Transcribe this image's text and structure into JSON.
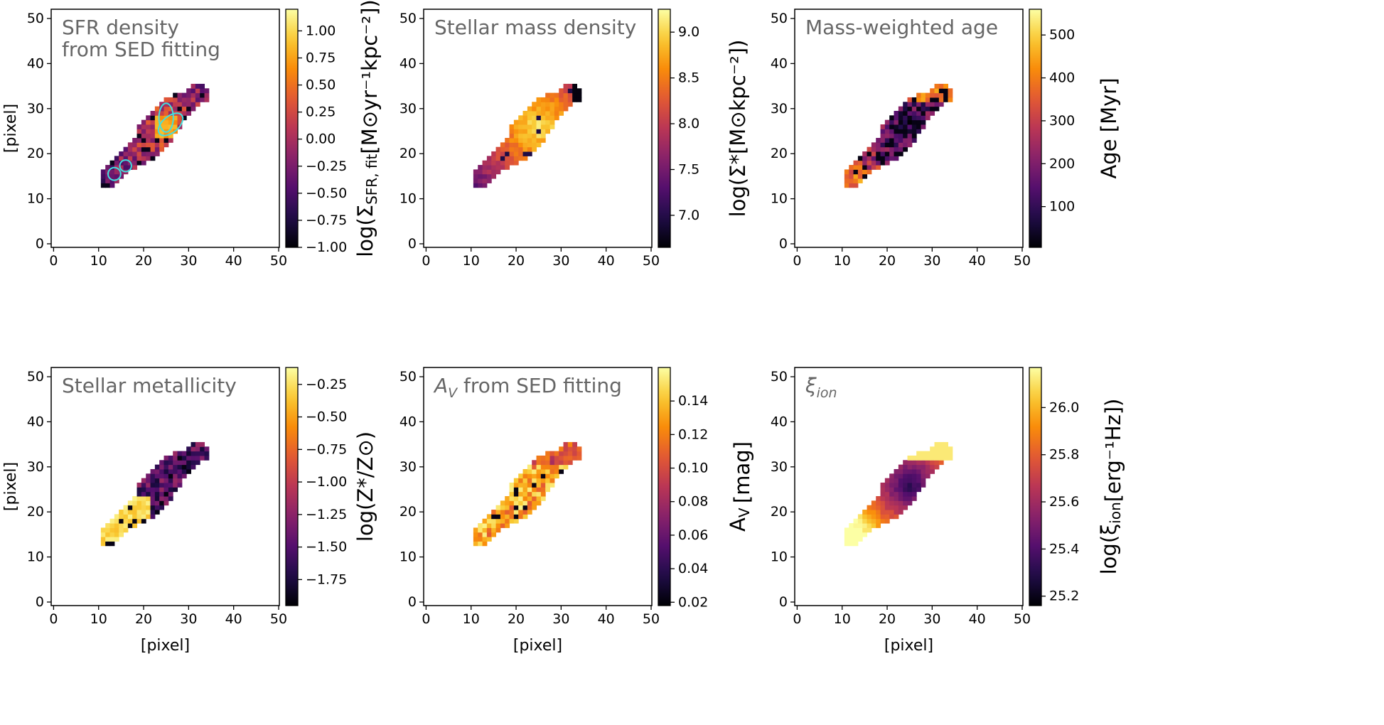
{
  "figure": {
    "panel_count": 6,
    "layout": "2 rows x 3 columns"
  },
  "chart_data": [
    {
      "id": "sfr",
      "type": "heatmap",
      "title_lines": [
        "SFR density",
        "from SED fitting"
      ],
      "xlabel": "",
      "ylabel": "[pixel]",
      "xlim": [
        0,
        50
      ],
      "ylim": [
        0,
        50
      ],
      "xticks": [
        "0",
        "10",
        "20",
        "30",
        "40",
        "50"
      ],
      "yticks": [
        "0",
        "10",
        "20",
        "30",
        "40",
        "50"
      ],
      "colormap": "inferno",
      "cbar": {
        "label": "log(Σ_SFR, fit[M⊙yr⁻¹kpc⁻²])",
        "vmin": -1.0,
        "vmax": 1.2,
        "ticks": [
          "−1.00",
          "−0.75",
          "−0.50",
          "−0.25",
          "0.00",
          "0.25",
          "0.50",
          "0.75",
          "1.00"
        ],
        "tick_values": [
          -1.0,
          -0.75,
          -0.5,
          -0.25,
          0.0,
          0.25,
          0.5,
          0.75,
          1.0
        ]
      },
      "pattern": "sfr",
      "contours": [
        {
          "type": "ellipse",
          "cx": 26,
          "cy": 26.5,
          "rx": 3.2,
          "ry": 1.8,
          "angle": 40
        },
        {
          "type": "ellipse",
          "cx": 25,
          "cy": 28,
          "rx": 1.6,
          "ry": 3.2,
          "angle": 0
        },
        {
          "type": "ellipse",
          "cx": 16,
          "cy": 17.3,
          "rx": 1.3,
          "ry": 1.3,
          "angle": 0
        },
        {
          "type": "ellipse",
          "cx": 13.5,
          "cy": 15.5,
          "rx": 1.4,
          "ry": 1.4,
          "angle": 0
        }
      ],
      "contour_color": "#40e0e0"
    },
    {
      "id": "mass",
      "type": "heatmap",
      "title_lines": [
        "Stellar mass density"
      ],
      "xlabel": "",
      "ylabel": "",
      "xlim": [
        0,
        50
      ],
      "ylim": [
        0,
        50
      ],
      "xticks": [
        "0",
        "10",
        "20",
        "30",
        "40",
        "50"
      ],
      "yticks": [
        "0",
        "10",
        "20",
        "30",
        "40",
        "50"
      ],
      "colormap": "inferno",
      "cbar": {
        "label": "log(Σ*[M⊙kpc⁻²])",
        "vmin": 6.65,
        "vmax": 9.25,
        "ticks": [
          "7.0",
          "7.5",
          "8.0",
          "8.5",
          "9.0"
        ],
        "tick_values": [
          7.0,
          7.5,
          8.0,
          8.5,
          9.0
        ]
      },
      "pattern": "mass"
    },
    {
      "id": "age",
      "type": "heatmap",
      "title_lines": [
        "Mass-weighted age"
      ],
      "xlabel": "",
      "ylabel": "",
      "xlim": [
        0,
        50
      ],
      "ylim": [
        0,
        50
      ],
      "xticks": [
        "0",
        "10",
        "20",
        "30",
        "40",
        "50"
      ],
      "yticks": [
        "0",
        "10",
        "20",
        "30",
        "40",
        "50"
      ],
      "colormap": "inferno",
      "cbar": {
        "label": "Age [Myr]",
        "vmin": 5,
        "vmax": 560,
        "ticks": [
          "100",
          "200",
          "300",
          "400",
          "500"
        ],
        "tick_values": [
          100,
          200,
          300,
          400,
          500
        ]
      },
      "pattern": "age"
    },
    {
      "id": "metallicity",
      "type": "heatmap",
      "title_lines": [
        "Stellar metallicity"
      ],
      "xlabel": "[pixel]",
      "ylabel": "[pixel]",
      "xlim": [
        0,
        50
      ],
      "ylim": [
        0,
        50
      ],
      "xticks": [
        "0",
        "10",
        "20",
        "30",
        "40",
        "50"
      ],
      "yticks": [
        "0",
        "10",
        "20",
        "30",
        "40",
        "50"
      ],
      "colormap": "inferno",
      "cbar": {
        "label": "log(Z*/Z⊙)",
        "vmin": -1.95,
        "vmax": -0.12,
        "ticks": [
          "−1.75",
          "−1.50",
          "−1.25",
          "−1.00",
          "−0.75",
          "−0.50",
          "−0.25"
        ],
        "tick_values": [
          -1.75,
          -1.5,
          -1.25,
          -1.0,
          -0.75,
          -0.5,
          -0.25
        ]
      },
      "pattern": "metal"
    },
    {
      "id": "av",
      "type": "heatmap",
      "title_lines": [
        "A_V from SED fitting"
      ],
      "xlabel": "[pixel]",
      "ylabel": "",
      "xlim": [
        0,
        50
      ],
      "ylim": [
        0,
        50
      ],
      "xticks": [
        "0",
        "10",
        "20",
        "30",
        "40",
        "50"
      ],
      "yticks": [
        "0",
        "10",
        "20",
        "30",
        "40",
        "50"
      ],
      "colormap": "inferno",
      "cbar": {
        "label": "A_V [mag]",
        "vmin": 0.018,
        "vmax": 0.16,
        "ticks": [
          "0.02",
          "0.04",
          "0.06",
          "0.08",
          "0.10",
          "0.12",
          "0.14"
        ],
        "tick_values": [
          0.02,
          0.04,
          0.06,
          0.08,
          0.1,
          0.12,
          0.14
        ]
      },
      "pattern": "av"
    },
    {
      "id": "xi",
      "type": "heatmap",
      "title_lines": [
        "ξ_ion"
      ],
      "xlabel": "[pixel]",
      "ylabel": "",
      "xlim": [
        0,
        50
      ],
      "ylim": [
        0,
        50
      ],
      "xticks": [
        "0",
        "10",
        "20",
        "30",
        "40",
        "50"
      ],
      "yticks": [
        "0",
        "10",
        "20",
        "30",
        "40",
        "50"
      ],
      "colormap": "inferno",
      "cbar": {
        "label": "log(ξ_ion[erg⁻¹Hz])",
        "vmin": 25.16,
        "vmax": 26.17,
        "ticks": [
          "25.2",
          "25.4",
          "25.6",
          "25.8",
          "26.0"
        ],
        "tick_values": [
          25.2,
          25.4,
          25.6,
          25.8,
          26.0
        ]
      },
      "pattern": "xi"
    }
  ]
}
